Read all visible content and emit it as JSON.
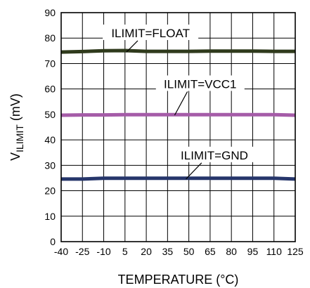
{
  "chart_data": {
    "type": "line",
    "xlabel": "TEMPERATURE (°C)",
    "ylabel_main": "V",
    "ylabel_sub": "ILIMIT",
    "ylabel_unit": " (mV)",
    "xlim": [
      -40,
      125
    ],
    "ylim": [
      0,
      90
    ],
    "x_ticks": [
      "-40",
      "-25",
      "-10",
      "5",
      "20",
      "35",
      "50",
      "65",
      "80",
      "95",
      "110",
      "125"
    ],
    "y_ticks": [
      "0",
      "10",
      "20",
      "30",
      "40",
      "50",
      "60",
      "70",
      "80",
      "90"
    ],
    "grid": true,
    "x": [
      -40,
      -25,
      -10,
      5,
      20,
      35,
      50,
      65,
      80,
      95,
      110,
      125
    ],
    "series": [
      {
        "name": "ILIMIT=FLOAT",
        "color": "#2f3a1c",
        "values": [
          74.5,
          74.7,
          75.0,
          75.1,
          74.8,
          74.8,
          74.8,
          74.9,
          74.9,
          74.9,
          74.8,
          74.8
        ]
      },
      {
        "name": "ILIMIT=VCC1",
        "color": "#a55ca8",
        "values": [
          49.7,
          49.8,
          49.8,
          49.9,
          49.9,
          49.9,
          49.9,
          49.9,
          49.9,
          49.9,
          49.9,
          49.7
        ]
      },
      {
        "name": "ILIMIT=GND",
        "color": "#26366b",
        "values": [
          24.6,
          24.6,
          24.9,
          24.9,
          24.9,
          24.9,
          24.9,
          24.9,
          24.9,
          24.9,
          24.9,
          24.6
        ]
      }
    ]
  }
}
